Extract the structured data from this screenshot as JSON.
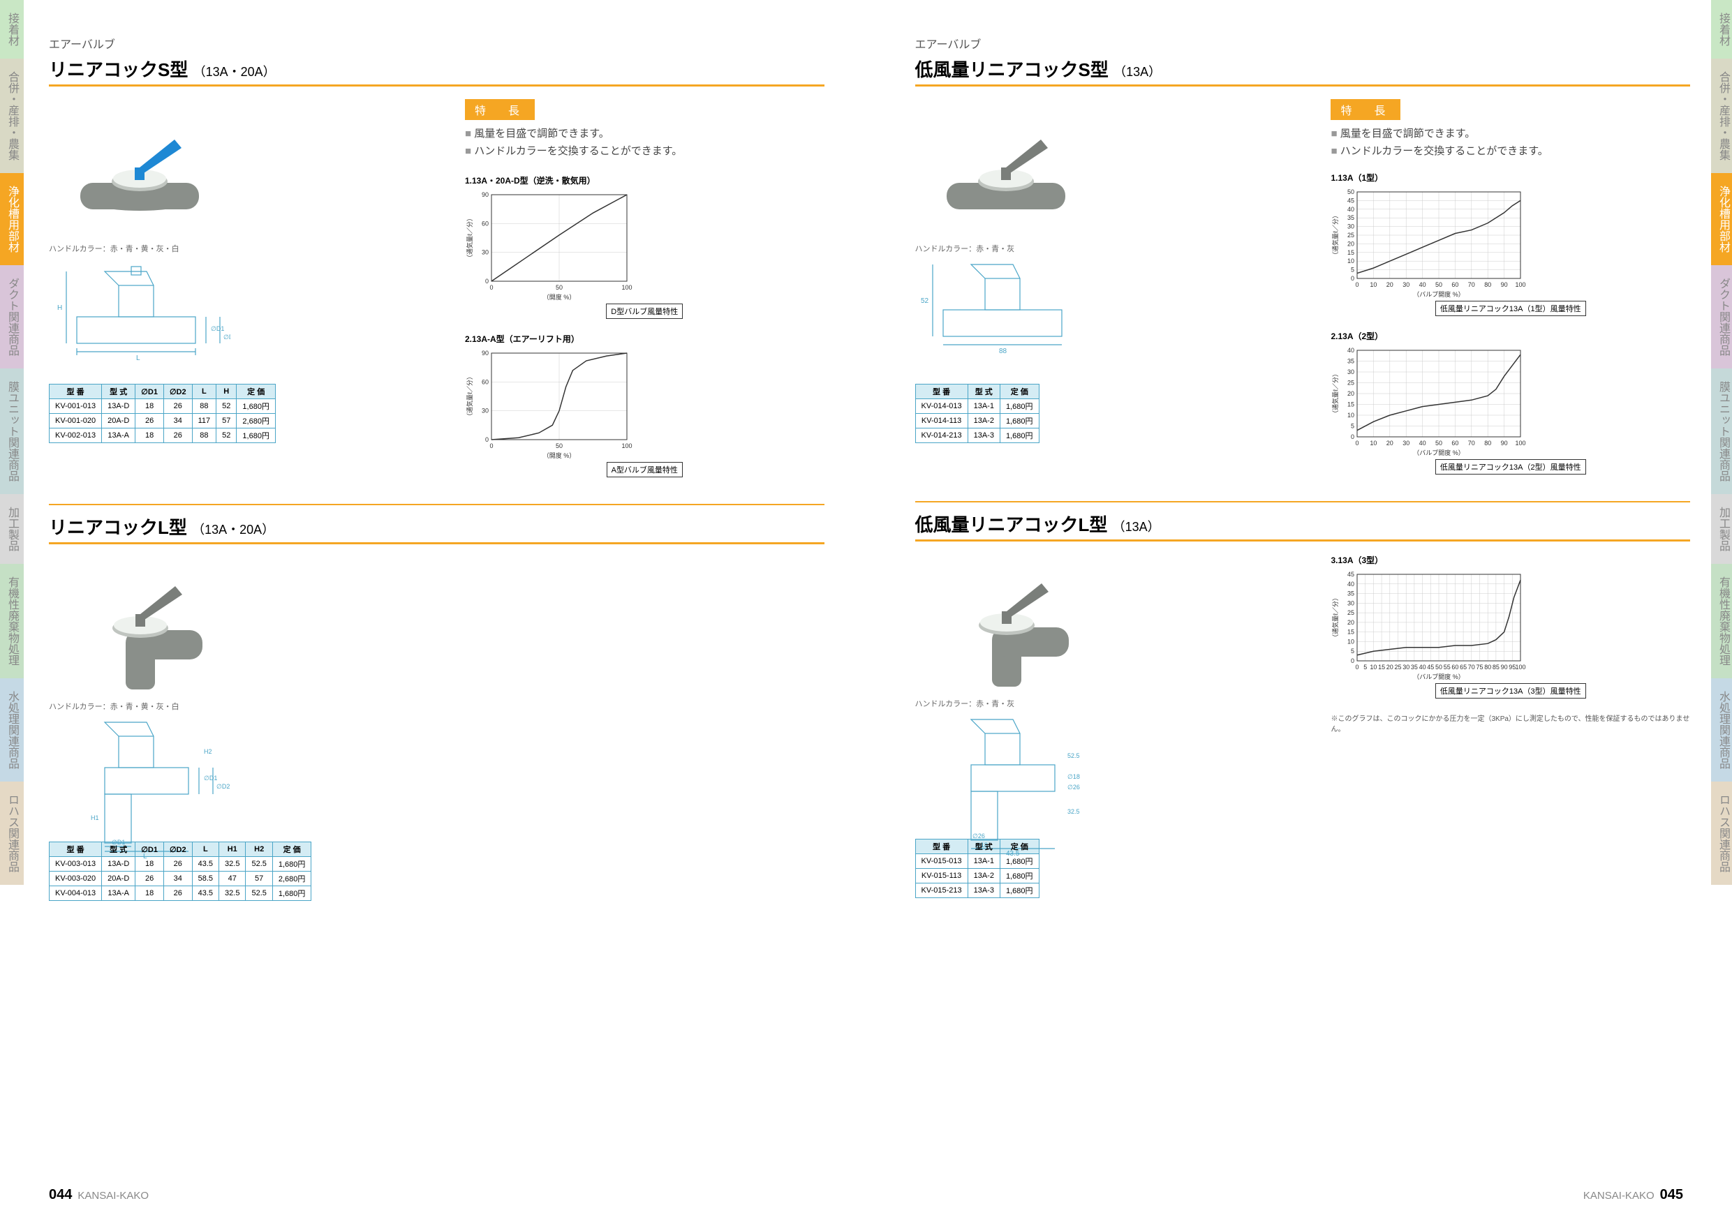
{
  "sidetabs": [
    "接着材",
    "合併・産排・農集",
    "浄化槽用部材",
    "ダクト関連商品",
    "膜ユニット関連商品",
    "加工製品",
    "有機性廃棄物処理",
    "水処理関連商品",
    "ロハス関連商品"
  ],
  "footer": {
    "brand": "KANSAI-KAKO",
    "pleft": "044",
    "pright": "045"
  },
  "p044": {
    "cat": "エアーバルブ",
    "sec1": {
      "title": "リニアコックS型",
      "sub": "（13A・20A）",
      "caption": "ハンドルカラー：赤・青・黄・灰・白",
      "feat": [
        "風量を目盛で調節できます。",
        "ハンドルカラーを交換することができます。"
      ],
      "tbl": {
        "head": [
          "型 番",
          "型 式",
          "∅D1",
          "∅D2",
          "L",
          "H",
          "定 価"
        ],
        "rows": [
          [
            "KV-001-013",
            "13A-D",
            "18",
            "26",
            "88",
            "52",
            "1,680円"
          ],
          [
            "KV-001-020",
            "20A-D",
            "26",
            "34",
            "117",
            "57",
            "2,680円"
          ],
          [
            "KV-002-013",
            "13A-A",
            "18",
            "26",
            "88",
            "52",
            "1,680円"
          ]
        ]
      },
      "chart1": {
        "title": "1.13A・20A-D型（逆洗・散気用）",
        "ylabel": "（通気量ℓ／分）",
        "xlabel": "（開度 %）",
        "cap": "D型バルブ風量特性",
        "ylim": [
          0,
          90
        ],
        "ystep": 30,
        "xlim": [
          0,
          100
        ],
        "xstep": 50,
        "points": [
          [
            0,
            0
          ],
          [
            25,
            24
          ],
          [
            50,
            48
          ],
          [
            75,
            71
          ],
          [
            100,
            90
          ]
        ]
      },
      "chart2": {
        "title": "2.13A-A型（エアーリフト用）",
        "ylabel": "（通気量ℓ／分）",
        "xlabel": "（開度 %）",
        "cap": "A型バルブ風量特性",
        "ylim": [
          0,
          90
        ],
        "ystep": 30,
        "xlim": [
          0,
          100
        ],
        "xstep": 50,
        "points": [
          [
            0,
            0
          ],
          [
            20,
            2
          ],
          [
            35,
            7
          ],
          [
            45,
            15
          ],
          [
            50,
            30
          ],
          [
            55,
            55
          ],
          [
            60,
            72
          ],
          [
            70,
            82
          ],
          [
            85,
            87
          ],
          [
            100,
            90
          ]
        ]
      }
    },
    "sec2": {
      "title": "リニアコックL型",
      "sub": "（13A・20A）",
      "caption": "ハンドルカラー：赤・青・黄・灰・白",
      "tbl": {
        "head": [
          "型 番",
          "型 式",
          "∅D1",
          "∅D2",
          "L",
          "H1",
          "H2",
          "定 価"
        ],
        "rows": [
          [
            "KV-003-013",
            "13A-D",
            "18",
            "26",
            "43.5",
            "32.5",
            "52.5",
            "1,680円"
          ],
          [
            "KV-003-020",
            "20A-D",
            "26",
            "34",
            "58.5",
            "47",
            "57",
            "2,680円"
          ],
          [
            "KV-004-013",
            "13A-A",
            "18",
            "26",
            "43.5",
            "32.5",
            "52.5",
            "1,680円"
          ]
        ]
      }
    }
  },
  "p045": {
    "cat": "エアーバルブ",
    "sec1": {
      "title": "低風量リニアコックS型",
      "sub": "（13A）",
      "caption": "ハンドルカラー：赤・青・灰",
      "feat": [
        "風量を目盛で調節できます。",
        "ハンドルカラーを交換することができます。"
      ],
      "tbl": {
        "head": [
          "型 番",
          "型 式",
          "定 価"
        ],
        "rows": [
          [
            "KV-014-013",
            "13A-1",
            "1,680円"
          ],
          [
            "KV-014-113",
            "13A-2",
            "1,680円"
          ],
          [
            "KV-014-213",
            "13A-3",
            "1,680円"
          ]
        ]
      },
      "chart1": {
        "title": "1.13A（1型）",
        "ylabel": "（通気量ℓ／分）",
        "xlabel": "（バルブ開度 %）",
        "cap": "低風量リニアコック13A（1型）風量特性",
        "ylim": [
          0,
          50
        ],
        "ystep": 5,
        "xlim": [
          0,
          100
        ],
        "xstep": 10,
        "points": [
          [
            0,
            3
          ],
          [
            10,
            6
          ],
          [
            20,
            10
          ],
          [
            30,
            14
          ],
          [
            40,
            18
          ],
          [
            50,
            22
          ],
          [
            60,
            26
          ],
          [
            70,
            28
          ],
          [
            80,
            32
          ],
          [
            90,
            38
          ],
          [
            95,
            42
          ],
          [
            100,
            45
          ]
        ]
      },
      "chart2": {
        "title": "2.13A（2型）",
        "ylabel": "（通気量ℓ／分）",
        "xlabel": "（バルブ開度 %）",
        "cap": "低風量リニアコック13A（2型）風量特性",
        "ylim": [
          0,
          40
        ],
        "ystep": 5,
        "xlim": [
          0,
          100
        ],
        "xstep": 10,
        "points": [
          [
            0,
            3
          ],
          [
            10,
            7
          ],
          [
            20,
            10
          ],
          [
            30,
            12
          ],
          [
            40,
            14
          ],
          [
            50,
            15
          ],
          [
            60,
            16
          ],
          [
            70,
            17
          ],
          [
            80,
            19
          ],
          [
            85,
            22
          ],
          [
            90,
            28
          ],
          [
            95,
            33
          ],
          [
            100,
            38
          ]
        ]
      },
      "chart3": {
        "title": "3.13A（3型）",
        "ylabel": "（通気量ℓ／分）",
        "xlabel": "（バルブ開度 %）",
        "cap": "低風量リニアコック13A（3型）風量特性",
        "ylim": [
          0,
          45
        ],
        "ystep": 5,
        "xlim": [
          0,
          100
        ],
        "xstep": 5,
        "points": [
          [
            0,
            3
          ],
          [
            10,
            5
          ],
          [
            20,
            6
          ],
          [
            30,
            7
          ],
          [
            40,
            7
          ],
          [
            50,
            7
          ],
          [
            60,
            8
          ],
          [
            70,
            8
          ],
          [
            80,
            9
          ],
          [
            85,
            11
          ],
          [
            90,
            15
          ],
          [
            93,
            23
          ],
          [
            96,
            33
          ],
          [
            100,
            42
          ]
        ]
      },
      "note": "※このグラフは、このコックにかかる圧力を一定（3KPa）にし測定したもので、性能を保証するものではありません。"
    },
    "sec2": {
      "title": "低風量リニアコックL型",
      "sub": "（13A）",
      "caption": "ハンドルカラー：赤・青・灰",
      "tbl": {
        "head": [
          "型 番",
          "型 式",
          "定 価"
        ],
        "rows": [
          [
            "KV-015-013",
            "13A-1",
            "1,680円"
          ],
          [
            "KV-015-113",
            "13A-2",
            "1,680円"
          ],
          [
            "KV-015-213",
            "13A-3",
            "1,680円"
          ]
        ]
      }
    }
  },
  "colors": {
    "accent": "#f5a623",
    "tblborder": "#4aa5c7",
    "tblhead": "#d4ecf4",
    "line": "#333",
    "valve_body": "#8a8f8a",
    "handle_blue": "#1e88d4",
    "handle_gray": "#7a7e7a"
  }
}
